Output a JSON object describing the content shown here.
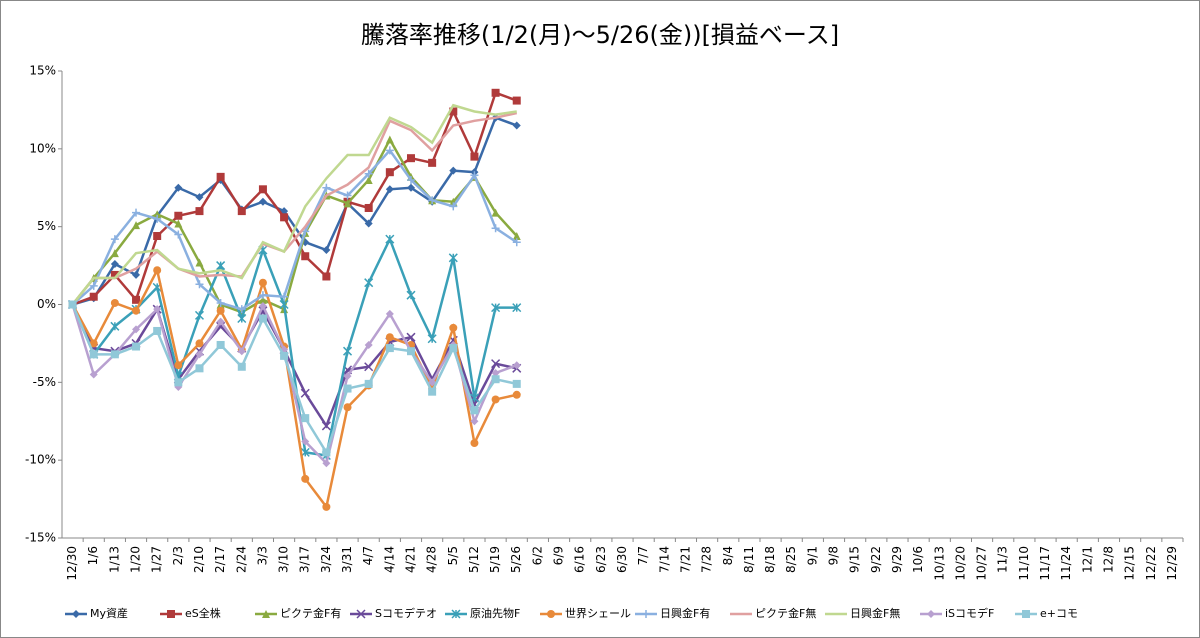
{
  "chart_data": {
    "type": "line",
    "title": "騰落率推移(1/2(月)～5/26(金))[損益ベース]",
    "categories": [
      "12/30",
      "1/6",
      "1/13",
      "1/20",
      "1/27",
      "2/3",
      "2/10",
      "2/17",
      "2/24",
      "3/3",
      "3/10",
      "3/17",
      "3/24",
      "3/31",
      "4/7",
      "4/14",
      "4/21",
      "4/28",
      "5/5",
      "5/12",
      "5/19",
      "5/26",
      "6/2",
      "6/9",
      "6/16",
      "6/23",
      "6/30",
      "7/7",
      "7/14",
      "7/21",
      "7/28",
      "8/4",
      "8/11",
      "8/18",
      "8/25",
      "9/1",
      "9/8",
      "9/15",
      "9/22",
      "9/29",
      "10/6",
      "10/13",
      "10/20",
      "10/27",
      "11/3",
      "11/10",
      "11/17",
      "11/24",
      "12/1",
      "12/8",
      "12/15",
      "12/22",
      "12/29"
    ],
    "ylim": [
      -15,
      15
    ],
    "yticks": [
      {
        "value": -15,
        "label": "-15%"
      },
      {
        "value": -10,
        "label": "-10%"
      },
      {
        "value": -5,
        "label": "-5%"
      },
      {
        "value": 0,
        "label": "0%"
      },
      {
        "value": 5,
        "label": "5%"
      },
      {
        "value": 10,
        "label": "10%"
      },
      {
        "value": 15,
        "label": "15%"
      }
    ],
    "grid": false,
    "legend": "bottom",
    "series": [
      {
        "name": "My資産",
        "color": "#3a6aa8",
        "marker": "diamond",
        "values": [
          0,
          0.4,
          2.6,
          1.9,
          5.7,
          7.5,
          6.9,
          8.0,
          6.1,
          6.6,
          6.0,
          4.0,
          3.5,
          6.5,
          5.2,
          7.4,
          7.5,
          6.6,
          8.6,
          8.5,
          12.0,
          11.5,
          null,
          null,
          null,
          null,
          null,
          null,
          null,
          null,
          null,
          null,
          null,
          null,
          null,
          null,
          null,
          null,
          null,
          null,
          null,
          null,
          null,
          null,
          null,
          null,
          null,
          null,
          null,
          null,
          null,
          null,
          null
        ]
      },
      {
        "name": "eS全株",
        "color": "#b03a3a",
        "marker": "square",
        "values": [
          0,
          0.5,
          1.9,
          0.3,
          4.4,
          5.7,
          6.0,
          8.2,
          6.0,
          7.4,
          5.6,
          3.1,
          1.8,
          6.6,
          6.2,
          8.5,
          9.4,
          9.1,
          12.4,
          9.5,
          13.6,
          13.1,
          null,
          null,
          null,
          null,
          null,
          null,
          null,
          null,
          null,
          null,
          null,
          null,
          null,
          null,
          null,
          null,
          null,
          null,
          null,
          null,
          null,
          null,
          null,
          null,
          null,
          null,
          null,
          null,
          null,
          null,
          null
        ]
      },
      {
        "name": "ピクテ金F有",
        "color": "#8aaa40",
        "marker": "triangle",
        "values": [
          0,
          1.7,
          3.3,
          5.1,
          5.8,
          5.2,
          2.7,
          0.0,
          -0.5,
          0.3,
          -0.3,
          4.6,
          7.0,
          6.5,
          8.0,
          10.6,
          8.2,
          6.7,
          6.6,
          8.2,
          5.9,
          4.4,
          null,
          null,
          null,
          null,
          null,
          null,
          null,
          null,
          null,
          null,
          null,
          null,
          null,
          null,
          null,
          null,
          null,
          null,
          null,
          null,
          null,
          null,
          null,
          null,
          null,
          null,
          null,
          null,
          null,
          null,
          null
        ]
      },
      {
        "name": "Sコモデテオ",
        "color": "#6a4a9a",
        "marker": "x",
        "values": [
          0,
          -2.8,
          -3.0,
          -2.5,
          -0.3,
          -4.8,
          -3.0,
          -1.4,
          -2.8,
          -0.4,
          -2.9,
          -5.7,
          -7.8,
          -4.2,
          -4.0,
          -2.4,
          -2.1,
          -4.8,
          -2.3,
          -6.4,
          -3.8,
          -4.1,
          null,
          null,
          null,
          null,
          null,
          null,
          null,
          null,
          null,
          null,
          null,
          null,
          null,
          null,
          null,
          null,
          null,
          null,
          null,
          null,
          null,
          null,
          null,
          null,
          null,
          null,
          null,
          null,
          null,
          null,
          null
        ]
      },
      {
        "name": "原油先物F",
        "color": "#3aa0b8",
        "marker": "star",
        "values": [
          0,
          -3.2,
          -1.4,
          -0.3,
          1.1,
          -4.6,
          -0.7,
          2.5,
          -0.9,
          3.5,
          0.0,
          -9.5,
          -9.7,
          -3.0,
          1.4,
          4.2,
          0.6,
          -2.2,
          3.0,
          -6.0,
          -0.2,
          -0.2,
          null,
          null,
          null,
          null,
          null,
          null,
          null,
          null,
          null,
          null,
          null,
          null,
          null,
          null,
          null,
          null,
          null,
          null,
          null,
          null,
          null,
          null,
          null,
          null,
          null,
          null,
          null,
          null,
          null,
          null,
          null
        ]
      },
      {
        "name": "世界シェール",
        "color": "#e88a3a",
        "marker": "circle",
        "values": [
          0,
          -2.5,
          0.1,
          -0.4,
          2.2,
          -3.9,
          -2.5,
          -0.4,
          -2.9,
          1.4,
          -2.7,
          -11.2,
          -13.0,
          -6.6,
          -5.2,
          -2.1,
          -2.6,
          -5.4,
          -1.5,
          -8.9,
          -6.1,
          -5.8,
          null,
          null,
          null,
          null,
          null,
          null,
          null,
          null,
          null,
          null,
          null,
          null,
          null,
          null,
          null,
          null,
          null,
          null,
          null,
          null,
          null,
          null,
          null,
          null,
          null,
          null,
          null,
          null,
          null,
          null,
          null
        ]
      },
      {
        "name": "日興金F有",
        "color": "#8ab0e0",
        "marker": "plus",
        "values": [
          0,
          1.2,
          4.2,
          5.9,
          5.5,
          4.5,
          1.3,
          0.1,
          -0.3,
          0.6,
          0.5,
          4.7,
          7.5,
          7.0,
          8.4,
          9.9,
          8.0,
          6.7,
          6.3,
          8.3,
          4.9,
          4.0,
          null,
          null,
          null,
          null,
          null,
          null,
          null,
          null,
          null,
          null,
          null,
          null,
          null,
          null,
          null,
          null,
          null,
          null,
          null,
          null,
          null,
          null,
          null,
          null,
          null,
          null,
          null,
          null,
          null,
          null,
          null
        ]
      },
      {
        "name": "ピクテ金F無",
        "color": "#e0a0a0",
        "marker": "none",
        "values": [
          0,
          1.7,
          1.7,
          2.3,
          3.4,
          2.3,
          1.8,
          1.9,
          1.8,
          3.9,
          3.4,
          5.0,
          7.0,
          7.7,
          8.8,
          11.8,
          11.2,
          9.9,
          11.5,
          11.8,
          12.0,
          12.3,
          null,
          null,
          null,
          null,
          null,
          null,
          null,
          null,
          null,
          null,
          null,
          null,
          null,
          null,
          null,
          null,
          null,
          null,
          null,
          null,
          null,
          null,
          null,
          null,
          null,
          null,
          null,
          null,
          null,
          null,
          null
        ]
      },
      {
        "name": "日興金F無",
        "color": "#c0d890",
        "marker": "none",
        "values": [
          0,
          1.7,
          1.7,
          3.3,
          3.5,
          2.3,
          2.0,
          2.2,
          1.7,
          4.0,
          3.4,
          6.3,
          8.1,
          9.6,
          9.6,
          12.0,
          11.4,
          10.4,
          12.8,
          12.4,
          12.2,
          12.4,
          null,
          null,
          null,
          null,
          null,
          null,
          null,
          null,
          null,
          null,
          null,
          null,
          null,
          null,
          null,
          null,
          null,
          null,
          null,
          null,
          null,
          null,
          null,
          null,
          null,
          null,
          null,
          null,
          null,
          null,
          null
        ]
      },
      {
        "name": "iSコモデF",
        "color": "#b8a0d0",
        "marker": "diamond",
        "values": [
          0,
          -4.5,
          -3.2,
          -1.6,
          -0.3,
          -5.3,
          -3.2,
          -1.1,
          -3.0,
          -0.1,
          -2.9,
          -8.8,
          -10.2,
          -4.6,
          -2.6,
          -0.6,
          -3.0,
          -5.0,
          -2.6,
          -7.5,
          -4.4,
          -3.9,
          null,
          null,
          null,
          null,
          null,
          null,
          null,
          null,
          null,
          null,
          null,
          null,
          null,
          null,
          null,
          null,
          null,
          null,
          null,
          null,
          null,
          null,
          null,
          null,
          null,
          null,
          null,
          null,
          null,
          null,
          null
        ]
      },
      {
        "name": "e+コモ",
        "color": "#90c8d8",
        "marker": "square",
        "values": [
          0,
          -3.2,
          -3.2,
          -2.7,
          -1.7,
          -5.0,
          -4.1,
          -2.6,
          -4.0,
          -0.9,
          -3.3,
          -7.3,
          -9.5,
          -5.4,
          -5.1,
          -2.8,
          -3.0,
          -5.6,
          -2.8,
          -6.8,
          -4.8,
          -5.1,
          null,
          null,
          null,
          null,
          null,
          null,
          null,
          null,
          null,
          null,
          null,
          null,
          null,
          null,
          null,
          null,
          null,
          null,
          null,
          null,
          null,
          null,
          null,
          null,
          null,
          null,
          null,
          null,
          null,
          null,
          null
        ]
      }
    ]
  }
}
